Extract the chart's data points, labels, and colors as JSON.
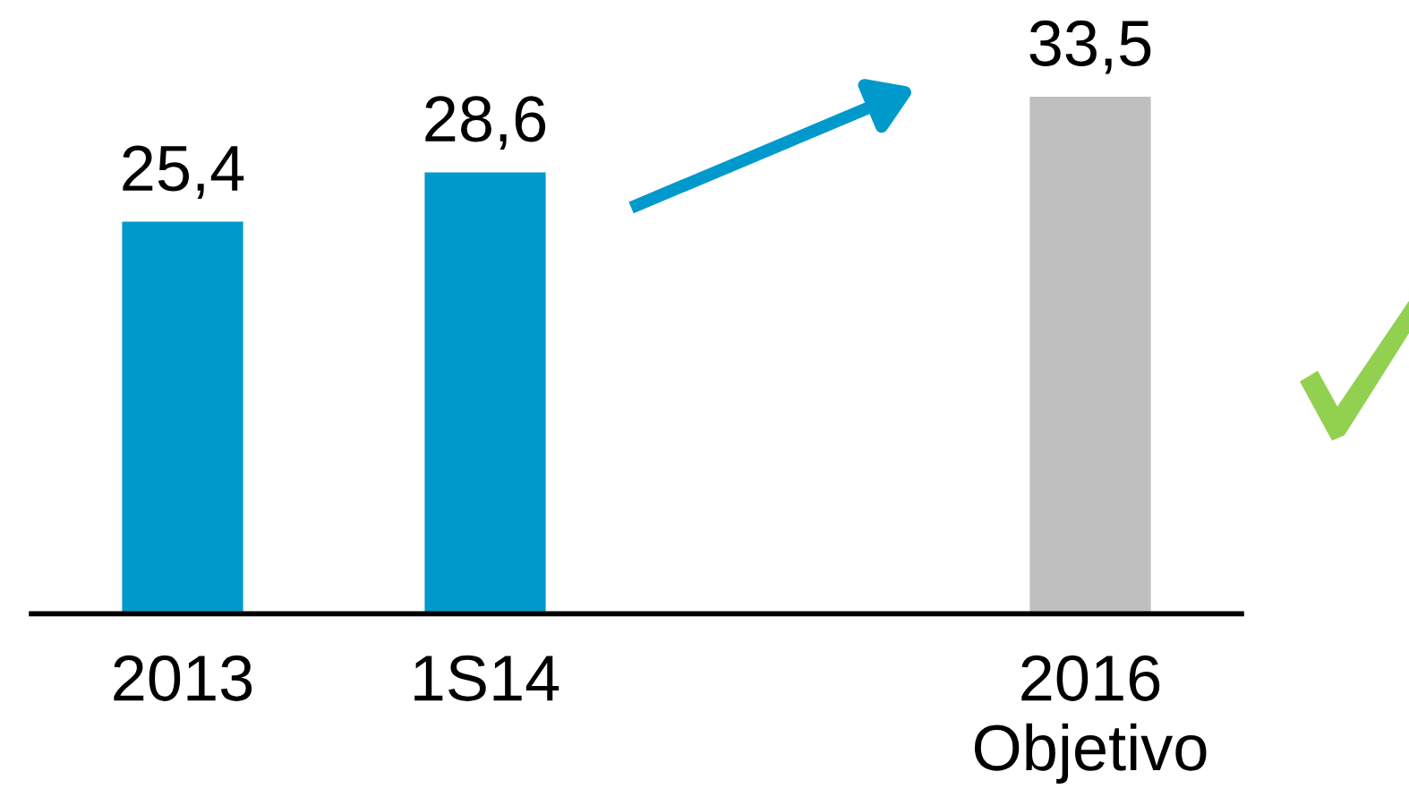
{
  "chart_data": {
    "type": "bar",
    "categories": [
      "2013",
      "1S14",
      null,
      "2016\nObjetivo"
    ],
    "values": [
      25.4,
      28.6,
      null,
      33.5
    ],
    "colors": [
      "#0099cc",
      "#0099cc",
      null,
      "#bfbfbf"
    ],
    "value_labels": [
      "25,4",
      "28,6",
      null,
      "33,5"
    ]
  }
}
